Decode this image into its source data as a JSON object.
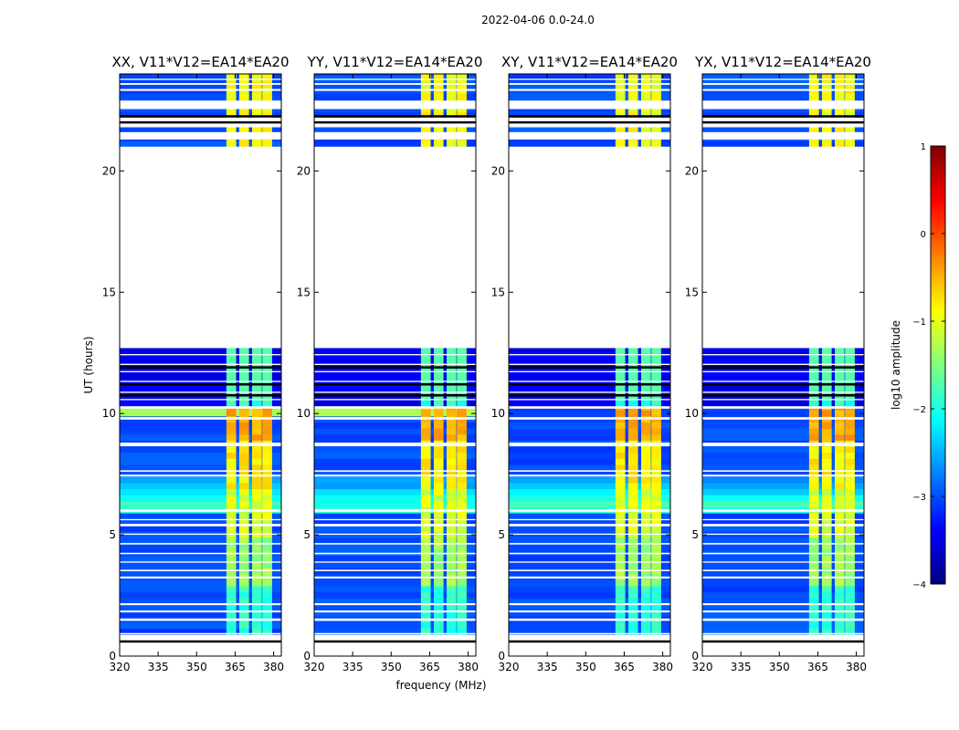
{
  "figure": {
    "suptitle": "2022-04-06 0.0-24.0",
    "xlabel": "frequency (MHz)",
    "ylabel": "UT (hours)"
  },
  "chart_data": {
    "type": "heatmap",
    "title": "2022-04-06 0.0-24.0",
    "xlabel": "frequency (MHz)",
    "ylabel": "UT (hours)",
    "xlim": [
      320,
      383
    ],
    "ylim": [
      0,
      24
    ],
    "xticks": [
      320,
      335,
      350,
      365,
      380
    ],
    "yticks": [
      0,
      5,
      10,
      15,
      20
    ],
    "colormap": "jet",
    "colorbar": {
      "label": "log10 amplitude",
      "range": [
        -4,
        1
      ],
      "ticks": [
        "1",
        "0",
        "−1",
        "−2",
        "−3",
        "−4"
      ]
    },
    "panels": [
      {
        "title": "XX, V11*V12=EA14*EA20",
        "rfi_channels_mhz": [
          363.5,
          368.5,
          373.5,
          377.5
        ]
      },
      {
        "title": "YY, V11*V12=EA14*EA20",
        "rfi_channels_mhz": [
          363.5,
          368.5,
          373.5,
          377.5
        ]
      },
      {
        "title": "XY, V11*V12=EA14*EA20",
        "rfi_channels_mhz": [
          363.5,
          368.5,
          373.5,
          377.5
        ]
      },
      {
        "title": "YX, V11*V12=EA14*EA20",
        "rfi_channels_mhz": [
          363.5,
          368.5,
          373.5,
          377.5
        ]
      }
    ],
    "data_segments_ut": [
      [
        0.9,
        10.3
      ],
      [
        10.3,
        12.7
      ],
      [
        21.0,
        21.3
      ],
      [
        21.6,
        21.8
      ],
      [
        22.2,
        24.0
      ]
    ],
    "gap_ut": [
      [
        12.7,
        21.0
      ]
    ]
  }
}
